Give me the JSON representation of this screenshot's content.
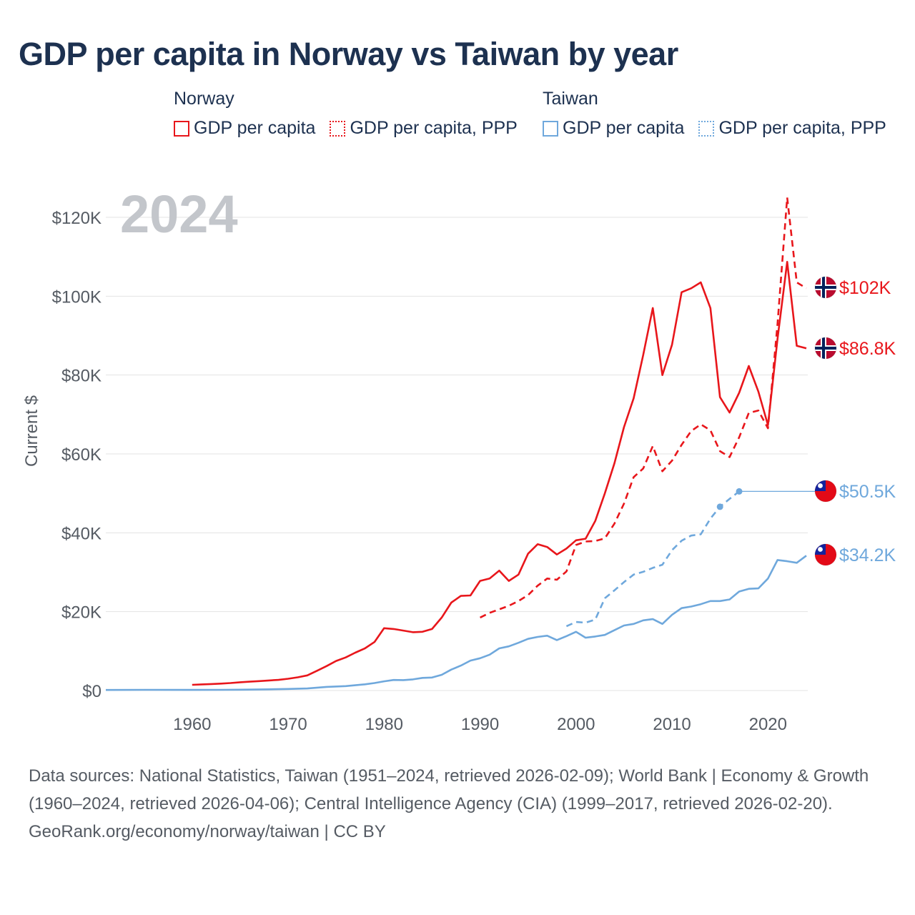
{
  "title": "GDP per capita in Norway vs Taiwan by year",
  "legend": {
    "groups": [
      {
        "name": "Norway",
        "color": "#e8161b",
        "items": [
          {
            "label": "GDP per capita",
            "style": "solid"
          },
          {
            "label": "GDP per capita, PPP",
            "style": "dotted"
          }
        ]
      },
      {
        "name": "Taiwan",
        "color": "#6fa8dc",
        "items": [
          {
            "label": "GDP per capita",
            "style": "solid"
          },
          {
            "label": "GDP per capita, PPP",
            "style": "dotted"
          }
        ]
      }
    ]
  },
  "year_label": "2024",
  "footer": {
    "sources": "Data sources: National Statistics, Taiwan (1951–2024, retrieved 2026-02-09); World Bank | Economy & Growth (1960–2024, retrieved 2026-04-06); Central Intelligence Agency (CIA) (1999–2017, retrieved 2026-02-20).",
    "credit": "GeoRank.org/economy/norway/taiwan | CC BY"
  },
  "colors": {
    "norway": "#e8161b",
    "taiwan": "#6fa8dc",
    "title": "#1d3150",
    "axis_text": "#555b63",
    "grid": "#e3e3e3",
    "year_watermark": "#c3c6cb"
  },
  "chart_data": {
    "type": "line",
    "title": "GDP per capita in Norway vs Taiwan by year",
    "xlabel": "",
    "ylabel": "Current $",
    "xlim": [
      1951,
      2024
    ],
    "ylim": [
      0,
      125000
    ],
    "x_ticks": [
      1960,
      1970,
      1980,
      1990,
      2000,
      2010,
      2020
    ],
    "x_tick_labels": [
      "1960",
      "1970",
      "1980",
      "1990",
      "2000",
      "2010",
      "2020"
    ],
    "y_ticks": [
      0,
      20000,
      40000,
      60000,
      80000,
      100000,
      120000
    ],
    "y_tick_labels": [
      "$0",
      "$20K",
      "$40K",
      "$60K",
      "$80K",
      "$100K",
      "$120K"
    ],
    "grid": true,
    "series": [
      {
        "name": "Norway GDP per capita",
        "country": "Norway",
        "style": "solid",
        "end_label": "$86.8K",
        "end_value": 86800,
        "points": [
          [
            1960,
            1450
          ],
          [
            1961,
            1550
          ],
          [
            1962,
            1650
          ],
          [
            1963,
            1750
          ],
          [
            1964,
            1900
          ],
          [
            1965,
            2100
          ],
          [
            1966,
            2250
          ],
          [
            1967,
            2400
          ],
          [
            1968,
            2550
          ],
          [
            1969,
            2700
          ],
          [
            1970,
            3000
          ],
          [
            1971,
            3350
          ],
          [
            1972,
            3850
          ],
          [
            1973,
            5000
          ],
          [
            1974,
            6200
          ],
          [
            1975,
            7500
          ],
          [
            1976,
            8400
          ],
          [
            1977,
            9600
          ],
          [
            1978,
            10700
          ],
          [
            1979,
            12300
          ],
          [
            1980,
            15800
          ],
          [
            1981,
            15600
          ],
          [
            1982,
            15200
          ],
          [
            1983,
            14800
          ],
          [
            1984,
            14900
          ],
          [
            1985,
            15600
          ],
          [
            1986,
            18500
          ],
          [
            1987,
            22300
          ],
          [
            1988,
            24000
          ],
          [
            1989,
            24100
          ],
          [
            1990,
            27800
          ],
          [
            1991,
            28400
          ],
          [
            1992,
            30400
          ],
          [
            1993,
            27800
          ],
          [
            1994,
            29400
          ],
          [
            1995,
            34700
          ],
          [
            1996,
            37100
          ],
          [
            1997,
            36400
          ],
          [
            1998,
            34500
          ],
          [
            1999,
            36000
          ],
          [
            2000,
            38100
          ],
          [
            2001,
            38500
          ],
          [
            2002,
            43000
          ],
          [
            2003,
            50000
          ],
          [
            2004,
            57600
          ],
          [
            2005,
            66800
          ],
          [
            2006,
            74100
          ],
          [
            2007,
            85100
          ],
          [
            2008,
            97000
          ],
          [
            2009,
            80000
          ],
          [
            2010,
            87700
          ],
          [
            2011,
            101000
          ],
          [
            2012,
            102000
          ],
          [
            2013,
            103500
          ],
          [
            2014,
            97000
          ],
          [
            2015,
            74400
          ],
          [
            2016,
            70500
          ],
          [
            2017,
            75500
          ],
          [
            2018,
            82300
          ],
          [
            2019,
            75800
          ],
          [
            2020,
            67300
          ],
          [
            2021,
            89200
          ],
          [
            2022,
            108700
          ],
          [
            2023,
            87400
          ],
          [
            2024,
            86800
          ]
        ]
      },
      {
        "name": "Norway GDP per capita, PPP",
        "country": "Norway",
        "style": "dashed",
        "end_label": "$102K",
        "end_value": 102000,
        "points": [
          [
            1990,
            18500
          ],
          [
            1991,
            19700
          ],
          [
            1992,
            20600
          ],
          [
            1993,
            21500
          ],
          [
            1994,
            22700
          ],
          [
            1995,
            24200
          ],
          [
            1996,
            26600
          ],
          [
            1997,
            28400
          ],
          [
            1998,
            28100
          ],
          [
            1999,
            30200
          ],
          [
            2000,
            36900
          ],
          [
            2001,
            37800
          ],
          [
            2002,
            37900
          ],
          [
            2003,
            38600
          ],
          [
            2004,
            42300
          ],
          [
            2005,
            47400
          ],
          [
            2006,
            54100
          ],
          [
            2007,
            56300
          ],
          [
            2008,
            62000
          ],
          [
            2009,
            55600
          ],
          [
            2010,
            58300
          ],
          [
            2011,
            62300
          ],
          [
            2012,
            65800
          ],
          [
            2013,
            67500
          ],
          [
            2014,
            66000
          ],
          [
            2015,
            60700
          ],
          [
            2016,
            59200
          ],
          [
            2017,
            64200
          ],
          [
            2018,
            70400
          ],
          [
            2019,
            71000
          ],
          [
            2020,
            66500
          ],
          [
            2021,
            93000
          ],
          [
            2022,
            125000
          ],
          [
            2023,
            103500
          ],
          [
            2024,
            102000
          ]
        ]
      },
      {
        "name": "Taiwan GDP per capita",
        "country": "Taiwan",
        "style": "solid",
        "end_label": "$34.2K",
        "end_value": 34200,
        "points": [
          [
            1951,
            150
          ],
          [
            1955,
            180
          ],
          [
            1960,
            160
          ],
          [
            1963,
            190
          ],
          [
            1965,
            220
          ],
          [
            1968,
            300
          ],
          [
            1970,
            390
          ],
          [
            1972,
            520
          ],
          [
            1974,
            920
          ],
          [
            1976,
            1130
          ],
          [
            1978,
            1580
          ],
          [
            1979,
            1900
          ],
          [
            1980,
            2340
          ],
          [
            1981,
            2680
          ],
          [
            1982,
            2650
          ],
          [
            1983,
            2820
          ],
          [
            1984,
            3200
          ],
          [
            1985,
            3300
          ],
          [
            1986,
            3990
          ],
          [
            1987,
            5320
          ],
          [
            1988,
            6330
          ],
          [
            1989,
            7600
          ],
          [
            1990,
            8200
          ],
          [
            1991,
            9100
          ],
          [
            1992,
            10700
          ],
          [
            1993,
            11200
          ],
          [
            1994,
            12100
          ],
          [
            1995,
            13100
          ],
          [
            1996,
            13600
          ],
          [
            1997,
            13900
          ],
          [
            1998,
            12800
          ],
          [
            1999,
            13800
          ],
          [
            2000,
            14900
          ],
          [
            2001,
            13400
          ],
          [
            2002,
            13700
          ],
          [
            2003,
            14100
          ],
          [
            2004,
            15300
          ],
          [
            2005,
            16500
          ],
          [
            2006,
            16900
          ],
          [
            2007,
            17800
          ],
          [
            2008,
            18100
          ],
          [
            2009,
            16900
          ],
          [
            2010,
            19200
          ],
          [
            2011,
            20900
          ],
          [
            2012,
            21300
          ],
          [
            2013,
            21900
          ],
          [
            2014,
            22700
          ],
          [
            2015,
            22700
          ],
          [
            2016,
            23100
          ],
          [
            2017,
            25100
          ],
          [
            2018,
            25800
          ],
          [
            2019,
            25900
          ],
          [
            2020,
            28400
          ],
          [
            2021,
            33100
          ],
          [
            2022,
            32800
          ],
          [
            2023,
            32400
          ],
          [
            2024,
            34200
          ]
        ]
      },
      {
        "name": "Taiwan GDP per capita, PPP",
        "country": "Taiwan",
        "style": "dashed",
        "end_label": "$50.5K",
        "end_value": 50500,
        "points": [
          [
            1999,
            16300
          ],
          [
            2000,
            17400
          ],
          [
            2001,
            17200
          ],
          [
            2002,
            18000
          ],
          [
            2003,
            23400
          ],
          [
            2004,
            25400
          ],
          [
            2005,
            27500
          ],
          [
            2006,
            29400
          ],
          [
            2007,
            30100
          ],
          [
            2008,
            31100
          ],
          [
            2009,
            31900
          ],
          [
            2010,
            35600
          ],
          [
            2011,
            38000
          ],
          [
            2012,
            39300
          ],
          [
            2013,
            39600
          ],
          [
            2014,
            43600
          ],
          [
            2015,
            46600
          ],
          [
            2016,
            48600
          ],
          [
            2017,
            50500
          ]
        ]
      }
    ],
    "markers": [
      {
        "series": "Taiwan GDP per capita, PPP",
        "x": 2015,
        "y": 46600
      },
      {
        "series": "Taiwan GDP per capita, PPP",
        "x": 2017,
        "y": 50500
      }
    ],
    "end_labels": [
      {
        "text": "$102K",
        "country": "Norway",
        "value": 102000,
        "flag": "norway-flag"
      },
      {
        "text": "$86.8K",
        "country": "Norway",
        "value": 86800,
        "flag": "norway-flag"
      },
      {
        "text": "$50.5K",
        "country": "Taiwan",
        "value": 50500,
        "flag": "taiwan-flag"
      },
      {
        "text": "$34.2K",
        "country": "Taiwan",
        "value": 34200,
        "flag": "taiwan-flag"
      }
    ]
  }
}
